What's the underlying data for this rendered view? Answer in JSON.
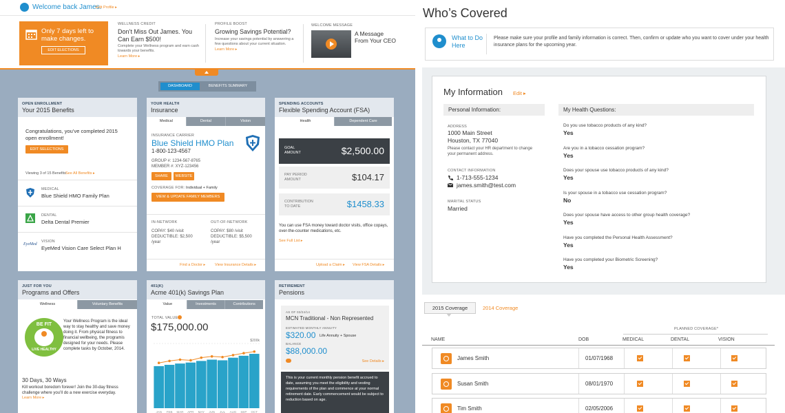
{
  "header": {
    "welcome": "Welcome back James.",
    "edit_profile": "Edit Profile ▸"
  },
  "promo": {
    "deadline": "Only 7 days left to make changes.",
    "deadline_button": "EDIT ELECTIONS",
    "items": [
      {
        "eyebrow": "WELLNESS CREDIT",
        "title": "Don’t Miss Out James. You Can Earn $500!",
        "text": "Complete your Wellness program and earn cash towards your benefits.",
        "link": "Learn More ▸"
      },
      {
        "eyebrow": "PROFILE BOOST",
        "title": "Growing Savings Potential?",
        "text": "Increase your savings potential by answering a few questions about your current situation.",
        "link": "Learn More ▸"
      }
    ],
    "video": {
      "eyebrow": "WELCOME MESSAGE",
      "title": "A Message From Your CEO"
    }
  },
  "tabs": [
    "DASHBOARD",
    "BENEFITS SUMMARY"
  ],
  "enrollment": {
    "eyebrow": "OPEN ENROLLMENT",
    "title": "Your 2015 Benefits",
    "message": "Congratulations, you’ve completed 2015 open enrollment!",
    "button": "EDIT SELECTIONS",
    "viewing": "Viewing 3 of 15 Benefits",
    "see_all": "See All Benefits ▸",
    "plans": [
      {
        "type": "MEDICAL",
        "name": "Blue Shield HMO Family Plan"
      },
      {
        "type": "DENTAL",
        "name": "Delta Dental Premier"
      },
      {
        "type": "VISION",
        "name": "EyeMed Vision Care Select Plan H",
        "logo": "EyeMed"
      }
    ]
  },
  "insurance": {
    "eyebrow": "YOUR HEALTH",
    "title": "Insurance",
    "tabs": [
      "Medical",
      "Dental",
      "Vision"
    ],
    "carrier_label": "INSURANCE CARRIER",
    "carrier": "Blue Shield HMO Plan",
    "phone": "1-800-123-4567",
    "group": "GROUP #: 1234-567-8765",
    "member": "MEMBER #: XYZ-123456",
    "buttons": [
      "SHARE",
      "WEBSITE"
    ],
    "coverage_label": "COVERAGE FOR:",
    "coverage": "Individual + Family",
    "update_button": "VIEW & UPDATE FAMILY MEMBERS",
    "in_network": {
      "label": "IN-NETWORK",
      "copay": "COPAY: $40 /visit",
      "deductible": "DEDUCTIBLE: $2,500 /year"
    },
    "out_network": {
      "label": "OUT-OF-NETWORK",
      "copay": "COPAY: $80 /visit",
      "deductible": "DEDUCTIBLE: $5,500 /year"
    },
    "links": [
      "Find a Doctor ▸",
      "View Insurance Details ▸"
    ]
  },
  "fsa": {
    "eyebrow": "SPENDING ACCOUNTS",
    "title": "Flexible Spending Account (FSA)",
    "tabs": [
      "Health",
      "Dependent Care"
    ],
    "rows": [
      {
        "label": "GOAL AMOUNT",
        "value": "$2,500.00"
      },
      {
        "label": "PAY PERIOD AMOUNT",
        "value": "$104.17"
      },
      {
        "label": "CONTRIBUTION TO DATE",
        "value": "$1458.33"
      }
    ],
    "note": "You can use FSA money toward doctor visits, office copays, over-the-counter medications, etc.",
    "see_full": "See Full List ▸",
    "links": [
      "Upload a Claim ▸",
      "View FSA Details ▸"
    ]
  },
  "programs": {
    "eyebrow": "JUST FOR YOU",
    "title": "Programs and Offers",
    "tabs": [
      "Wellness",
      "Voluntary Benefits"
    ],
    "badge_top": "BE FIT",
    "badge_bottom": "LIVE HEALTHY",
    "text": "Your Wellness Program is the ideal way to stay healthy and save money doing it. From physical fitness to financial wellbeing, the programis designed for your needs. Please complete tasks by October, 2014.",
    "challenge_title": "30 Days, 30 Ways",
    "challenge_text": "Kill workout boredom forever! Join the 30-day fitness challenge where you’ll do a new exercise everyday.",
    "link": "Learn More ▸"
  },
  "savings": {
    "eyebrow": "401(K)",
    "title": "Acme 401(k) Savings Plan",
    "tabs": [
      "Value",
      "Investments",
      "Contributions"
    ],
    "total_label": "TOTAL VALUE",
    "total": "$175,000.00",
    "chart": {
      "type": "bar",
      "categories": [
        "JAN",
        "FEB",
        "MAR",
        "APR",
        "MAY",
        "JUN",
        "JUL",
        "AUG",
        "SEP",
        "OCT"
      ],
      "values": [
        130000,
        134000,
        138000,
        141000,
        146000,
        150000,
        148000,
        156000,
        162000,
        168000
      ],
      "line_values": [
        140000,
        146000,
        150000,
        148000,
        156000,
        160000,
        158000,
        164000,
        170000,
        175000
      ],
      "color": "#29a3c9",
      "line_color": "#f08a24",
      "ylim": [
        0,
        200000
      ],
      "yticks": [
        {
          "value": 200000,
          "label": "$200k"
        }
      ]
    }
  },
  "pensions": {
    "eyebrow": "RETIREMENT",
    "title": "Pensions",
    "as_of": "AS OF 03/24/14",
    "plan": "MCN Traditional - Non Represented",
    "annuity_label": "ESTIMATED MONTHLY ANNUITY",
    "annuity": "$320.00",
    "annuity_type": "Life Annuity + Spouse",
    "balance_label": "BALANCE",
    "balance": "$88,000.00",
    "see_details": "See Details ▸",
    "tooltip": "This is your current monthly pension benefit accrued to date, assuming you meet the eligibility and vesting requirements of the plan and commence at your normal retirement date. Early commencement would be subject to reduction based on age."
  },
  "covered": {
    "title": "Who’s Covered",
    "what_to_do": "What to Do Here",
    "instructions": "Please make sure your profile and family information is correct. Then, confirm or update who you want to cover under your health insurance plans for the upcoming year.",
    "info_title": "My Information",
    "edit": "Edit ▸",
    "personal_heading": "Personal Information:",
    "health_heading": "My Health Questions:",
    "address_label": "ADDRESS",
    "address_lines": [
      "1000 Main Street",
      "Houston, TX 77040"
    ],
    "address_note": "Please contact your HR department to change your permanent address.",
    "contact_label": "CONTACT INFORMATION",
    "phone": "1-713-555-1234",
    "email": "james.smith@test.com",
    "marital_label": "MARITAL STATUS",
    "marital": "Married",
    "questions": [
      {
        "q": "Do you use tobacco products of any kind?",
        "a": "Yes"
      },
      {
        "q": "Are you in a tobacco cessation program?",
        "a": "Yes"
      },
      {
        "q": "Does your spouse use tobacco products of any kind?",
        "a": "Yes"
      },
      {
        "q": "Is your spouse in a tobacco use cessation program?",
        "a": "No"
      },
      {
        "q": "Does your spouse have access to other group health coverage?",
        "a": "Yes"
      },
      {
        "q": "Have you completed the Personal Health Assessment?",
        "a": "Yes"
      },
      {
        "q": "Have you completed your Biometric Screening?",
        "a": "Yes"
      }
    ],
    "coverage_tabs": [
      "2015 Coverage",
      "2014 Coverage"
    ],
    "planned": "PLANNED COVERAGE*",
    "columns": [
      "NAME",
      "DOB",
      "MEDICAL",
      "DENTAL",
      "VISION"
    ],
    "members": [
      {
        "name": "James Smith",
        "dob": "01/07/1968",
        "coverage": [
          true,
          true,
          true
        ]
      },
      {
        "name": "Susan Smith",
        "dob": "08/01/1970",
        "coverage": [
          true,
          true,
          true
        ]
      },
      {
        "name": "Tim Smith",
        "dob": "02/05/2006",
        "coverage": [
          true,
          true,
          true
        ]
      }
    ]
  }
}
